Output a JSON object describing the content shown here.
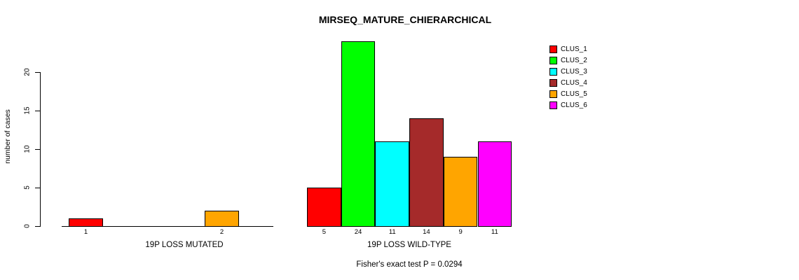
{
  "chart_data": {
    "type": "bar",
    "title": "MIRSEQ_MATURE_CHIERARCHICAL",
    "ylabel": "number of cases",
    "ylim": [
      0,
      24
    ],
    "yticks": [
      0,
      5,
      10,
      15,
      20
    ],
    "grid": false,
    "legend_position": "top-right",
    "legend": [
      {
        "label": "CLUS_1",
        "color": "#FF0000"
      },
      {
        "label": "CLUS_2",
        "color": "#00FF00"
      },
      {
        "label": "CLUS_3",
        "color": "#00FFFF"
      },
      {
        "label": "CLUS_4",
        "color": "#A52A2A"
      },
      {
        "label": "CLUS_5",
        "color": "#FFA500"
      },
      {
        "label": "CLUS_6",
        "color": "#FF00FF"
      }
    ],
    "groups": [
      {
        "xlabel": "19P LOSS MUTATED",
        "bars": [
          {
            "cluster": "CLUS_1",
            "value": 1,
            "color": "#FF0000"
          },
          {
            "cluster": "CLUS_5",
            "value": 2,
            "color": "#FFA500"
          }
        ]
      },
      {
        "xlabel": "19P LOSS WILD-TYPE",
        "bars": [
          {
            "cluster": "CLUS_1",
            "value": 5,
            "color": "#FF0000"
          },
          {
            "cluster": "CLUS_2",
            "value": 24,
            "color": "#00FF00"
          },
          {
            "cluster": "CLUS_3",
            "value": 11,
            "color": "#00FFFF"
          },
          {
            "cluster": "CLUS_4",
            "value": 14,
            "color": "#A52A2A"
          },
          {
            "cluster": "CLUS_5",
            "value": 9,
            "color": "#FFA500"
          },
          {
            "cluster": "CLUS_6",
            "value": 11,
            "color": "#FF00FF"
          }
        ]
      }
    ],
    "footnote": "Fisher's exact test P = 0.0294"
  }
}
